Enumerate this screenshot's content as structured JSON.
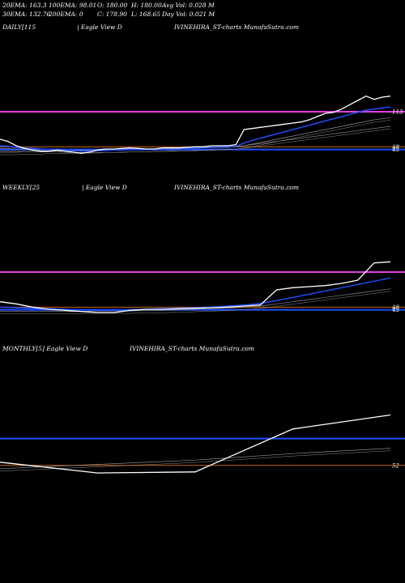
{
  "header": {
    "row1": [
      {
        "label": "20EMA:",
        "value": "163.3"
      },
      {
        "label": "100EMA:",
        "value": "98.01"
      },
      {
        "label": "O:",
        "value": "180.00"
      },
      {
        "label": "H:",
        "value": "180.00"
      },
      {
        "label": "Avg Vol:",
        "value": "0.028  M"
      }
    ],
    "row2": [
      {
        "label": "30EMA:",
        "value": "132.76"
      },
      {
        "label": "200EMA:",
        "value": "0"
      },
      {
        "label": "C:",
        "value": "178.90"
      },
      {
        "label": "L:",
        "value": "168.65"
      },
      {
        "label": "Day Vol:",
        "value": "0.021 M"
      }
    ]
  },
  "panels": [
    {
      "period_label": "DAILY[115",
      "view_label": "| Eagle  View  D",
      "brand_label": "IVINEHIRA_ST-charts MunafaSutra.com",
      "tick_labels": [
        "113",
        "48",
        "43"
      ]
    },
    {
      "period_label": "WEEKLY[25",
      "view_label": "| Eagle  View  D",
      "brand_label": "IVINEHIRA_ST-charts MunafaSutra.com",
      "tick_labels": [
        "48",
        "43"
      ]
    },
    {
      "period_label": "MONTHLY[5] Eagle  View  D",
      "view_label": "",
      "brand_label": "IVINEHIRA_ST-charts MunafaSutra.com",
      "tick_labels": [
        "52"
      ]
    }
  ],
  "colors": {
    "background": "#000000",
    "price": "#ffffff",
    "ema_blue": "#1f4fff",
    "magenta": "#e040e0",
    "orange": "#c86414",
    "gray": "#8c8c8c"
  },
  "chart_data": [
    {
      "type": "line",
      "title": "",
      "x": [
        0,
        1,
        2,
        3,
        4,
        5,
        6,
        7,
        8,
        9,
        10,
        11,
        12,
        13,
        14,
        15,
        16,
        17,
        18,
        19,
        20,
        21,
        22,
        23,
        24,
        25,
        26,
        27,
        28,
        29,
        30,
        31,
        32,
        33,
        34,
        35,
        36,
        37,
        38,
        39,
        40,
        41,
        42,
        43,
        44,
        45,
        46,
        47,
        48
      ],
      "ylim": [
        20,
        260
      ],
      "series": [
        {
          "name": "",
          "role": "price",
          "values": [
            62,
            58,
            50,
            45,
            42,
            40,
            40,
            42,
            40,
            38,
            36,
            38,
            42,
            44,
            44,
            45,
            46,
            45,
            44,
            44,
            46,
            46,
            46,
            47,
            48,
            48,
            50,
            50,
            50,
            52,
            80,
            82,
            84,
            86,
            88,
            90,
            92,
            94,
            98,
            104,
            110,
            112,
            118,
            126,
            134,
            142,
            136,
            140,
            142
          ]
        },
        {
          "name": "",
          "role": "ema-fast",
          "values": [
            50,
            49,
            47,
            46,
            45,
            44,
            43,
            43,
            42,
            41,
            40,
            40,
            41,
            41,
            42,
            42,
            43,
            43,
            43,
            44,
            44,
            45,
            45,
            46,
            46,
            47,
            47,
            48,
            48,
            49,
            55,
            60,
            64,
            68,
            72,
            76,
            80,
            84,
            88,
            92,
            96,
            100,
            104,
            108,
            112,
            116,
            118,
            120,
            122
          ]
        },
        {
          "name": "",
          "role": "ema-mid",
          "values": [
            45,
            45,
            44,
            44,
            44,
            43,
            43,
            43,
            42,
            42,
            42,
            42,
            42,
            42,
            42,
            43,
            43,
            43,
            43,
            44,
            44,
            44,
            45,
            45,
            45,
            46,
            46,
            47,
            47,
            48,
            50,
            53,
            56,
            59,
            62,
            65,
            68,
            71,
            74,
            77,
            80,
            83,
            86,
            89,
            92,
            95,
            98,
            100,
            102
          ]
        },
        {
          "name": "",
          "role": "ema-slow",
          "values": [
            38,
            38,
            38,
            39,
            39,
            39,
            40,
            40,
            40,
            40,
            41,
            41,
            41,
            42,
            42,
            42,
            43,
            43,
            43,
            44,
            44,
            45,
            45,
            45,
            46,
            46,
            47,
            47,
            48,
            48,
            50,
            52,
            54,
            56,
            58,
            60,
            62,
            64,
            66,
            68,
            70,
            72,
            74,
            76,
            78,
            80,
            82,
            84,
            86
          ]
        }
      ],
      "hlines": [
        {
          "role": "magenta",
          "value": 113
        },
        {
          "role": "orange",
          "value": 48
        },
        {
          "role": "blue",
          "value": 43
        }
      ]
    },
    {
      "type": "line",
      "title": "",
      "x": [
        0,
        1,
        2,
        3,
        4,
        5,
        6,
        7,
        8,
        9,
        10,
        11,
        12,
        13,
        14,
        15,
        16,
        17,
        18,
        19,
        20,
        21,
        22,
        23,
        24
      ],
      "ylim": [
        20,
        260
      ],
      "series": [
        {
          "name": "",
          "role": "price",
          "values": [
            58,
            54,
            48,
            44,
            42,
            40,
            38,
            38,
            42,
            44,
            44,
            45,
            46,
            47,
            48,
            50,
            52,
            80,
            84,
            86,
            88,
            92,
            98,
            130,
            132
          ]
        },
        {
          "name": "",
          "role": "ema-fast",
          "values": [
            48,
            47,
            46,
            45,
            44,
            43,
            42,
            42,
            43,
            44,
            45,
            46,
            47,
            48,
            50,
            52,
            55,
            60,
            66,
            72,
            78,
            84,
            90,
            96,
            102
          ]
        },
        {
          "name": "",
          "role": "ema-slow",
          "values": [
            40,
            40,
            40,
            40,
            40,
            40,
            41,
            41,
            41,
            42,
            42,
            43,
            44,
            45,
            46,
            48,
            50,
            54,
            58,
            62,
            66,
            70,
            74,
            78,
            82
          ]
        }
      ],
      "hlines": [
        {
          "role": "magenta",
          "value": 113
        },
        {
          "role": "orange",
          "value": 48
        },
        {
          "role": "blue",
          "value": 43
        }
      ]
    },
    {
      "type": "line",
      "title": "",
      "x": [
        0,
        1,
        2,
        3,
        4
      ],
      "ylim": [
        20,
        260
      ],
      "series": [
        {
          "name": "",
          "role": "price",
          "values": [
            58,
            38,
            40,
            120,
            146
          ]
        },
        {
          "name": "",
          "role": "ema-slow",
          "values": [
            46,
            54,
            62,
            74,
            84
          ]
        }
      ],
      "hlines": [
        {
          "role": "blue",
          "value": 102
        },
        {
          "role": "orange",
          "value": 52
        }
      ]
    }
  ]
}
